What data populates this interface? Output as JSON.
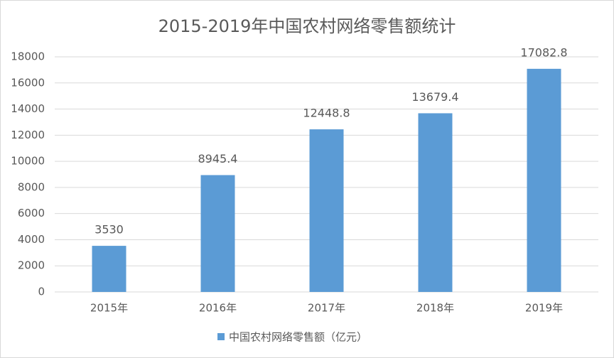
{
  "chart_data": {
    "type": "bar",
    "title": "2015-2019年中国农村网络零售额统计",
    "categories": [
      "2015年",
      "2016年",
      "2017年",
      "2018年",
      "2019年"
    ],
    "series": [
      {
        "name": "中国农村网络零售额（亿元）",
        "color": "#5b9bd5",
        "values": [
          3530,
          8945.4,
          12448.8,
          13679.4,
          17082.8
        ]
      }
    ],
    "ylim": [
      0,
      18000
    ],
    "yticks": [
      0,
      2000,
      4000,
      6000,
      8000,
      10000,
      12000,
      14000,
      16000,
      18000
    ],
    "grid": true,
    "legend": "bottom"
  }
}
